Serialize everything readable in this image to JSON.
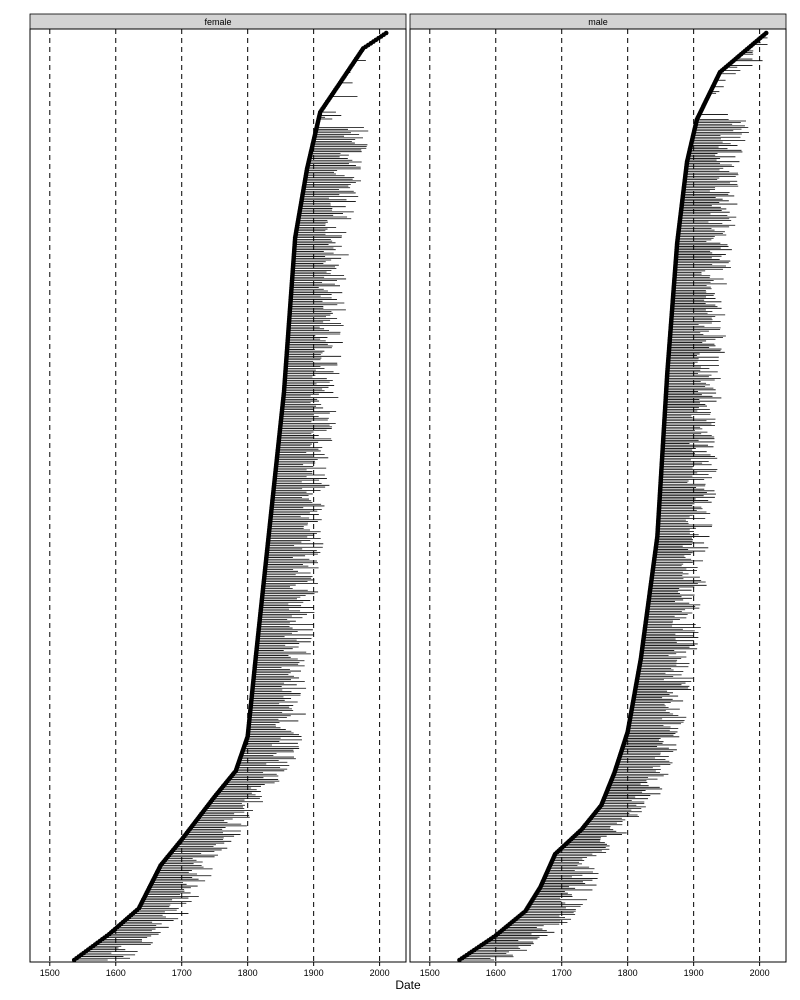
{
  "chart_data": {
    "type": "scatter",
    "facet_by": "gender",
    "panels": [
      {
        "label": "female",
        "n_rows": 540,
        "control_points": [
          {
            "i": 0,
            "x": 1537
          },
          {
            "i": 15,
            "x": 1590
          },
          {
            "i": 30,
            "x": 1635
          },
          {
            "i": 55,
            "x": 1668
          },
          {
            "i": 70,
            "x": 1700
          },
          {
            "i": 95,
            "x": 1750
          },
          {
            "i": 110,
            "x": 1782
          },
          {
            "i": 130,
            "x": 1800
          },
          {
            "i": 175,
            "x": 1812
          },
          {
            "i": 240,
            "x": 1830
          },
          {
            "i": 330,
            "x": 1855
          },
          {
            "i": 420,
            "x": 1872
          },
          {
            "i": 460,
            "x": 1890
          },
          {
            "i": 493,
            "x": 1910
          },
          {
            "i": 510,
            "x": 1940
          },
          {
            "i": 530,
            "x": 1975
          },
          {
            "i": 539,
            "x": 2010
          }
        ]
      },
      {
        "label": "male",
        "n_rows": 570,
        "control_points": [
          {
            "i": 0,
            "x": 1545
          },
          {
            "i": 15,
            "x": 1600
          },
          {
            "i": 30,
            "x": 1645
          },
          {
            "i": 45,
            "x": 1668
          },
          {
            "i": 65,
            "x": 1690
          },
          {
            "i": 80,
            "x": 1730
          },
          {
            "i": 95,
            "x": 1760
          },
          {
            "i": 115,
            "x": 1780
          },
          {
            "i": 140,
            "x": 1800
          },
          {
            "i": 185,
            "x": 1820
          },
          {
            "i": 260,
            "x": 1845
          },
          {
            "i": 360,
            "x": 1860
          },
          {
            "i": 440,
            "x": 1875
          },
          {
            "i": 490,
            "x": 1890
          },
          {
            "i": 516,
            "x": 1905
          },
          {
            "i": 545,
            "x": 1940
          },
          {
            "i": 569,
            "x": 2010
          }
        ]
      }
    ],
    "x_ticks": [
      1500,
      1600,
      1700,
      1800,
      1900,
      2000
    ],
    "reference_lines": [
      1500,
      1600,
      1700,
      1800,
      1900,
      2000
    ],
    "xlim": [
      1470,
      2040
    ],
    "xlabel": "Date",
    "ylabel": "",
    "grid": false,
    "legend": "none"
  }
}
